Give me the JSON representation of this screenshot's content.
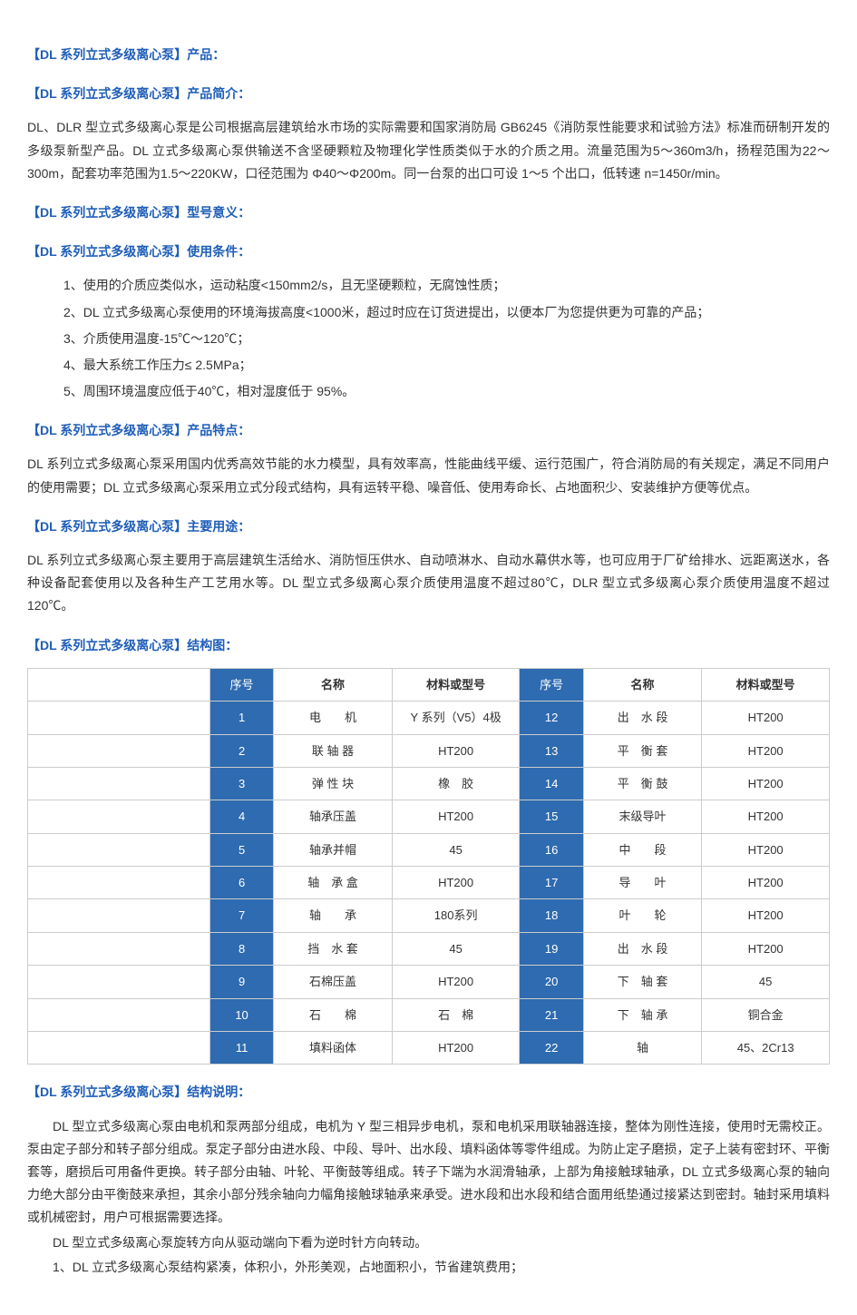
{
  "headers": {
    "product": "【DL 系列立式多级离心泵】产品：",
    "intro": "【DL 系列立式多级离心泵】产品简介：",
    "model": "【DL 系列立式多级离心泵】型号意义：",
    "conditions": "【DL 系列立式多级离心泵】使用条件：",
    "features": "【DL 系列立式多级离心泵】产品特点：",
    "usage": "【DL 系列立式多级离心泵】主要用途：",
    "structDiagram": "【DL 系列立式多级离心泵】结构图：",
    "structDesc": "【DL 系列立式多级离心泵】结构说明："
  },
  "intro_text": "DL、DLR 型立式多级离心泵是公司根据高层建筑给水市场的实际需要和国家消防局 GB6245《消防泵性能要求和试验方法》标准而研制开发的多级泵新型产品。DL 立式多级离心泵供输送不含坚硬颗粒及物理化学性质类似于水的介质之用。流量范围为5～360m3/h，扬程范围为22～300m，配套功率范围为1.5～220KW，口径范围为 Φ40～Φ200m。同一台泵的出口可设 1～5 个出口，低转速 n=1450r/min。",
  "conditions_list": [
    "1、使用的介质应类似水，运动粘度<150mm2/s，且无坚硬颗粒，无腐蚀性质；",
    "2、DL 立式多级离心泵使用的环境海拔高度<1000米，超过时应在订货进提出，以便本厂为您提供更为可靠的产品；",
    "3、介质使用温度-15℃～120℃；",
    "4、最大系统工作压力≤ 2.5MPa；",
    "5、周围环境温度应低于40℃，相对湿度低于 95%。"
  ],
  "features_text": "DL 系列立式多级离心泵采用国内优秀高效节能的水力模型，具有效率高，性能曲线平缓、运行范围广，符合消防局的有关规定，满足不同用户的使用需要；DL 立式多级离心泵采用立式分段式结构，具有运转平稳、噪音低、使用寿命长、占地面积少、安装维护方便等优点。",
  "usage_text": "DL 系列立式多级离心泵主要用于高层建筑生活给水、消防恒压供水、自动喷淋水、自动水幕供水等，也可应用于厂矿给排水、远距离送水，各种设备配套使用以及各种生产工艺用水等。DL 型立式多级离心泵介质使用温度不超过80℃，DLR 型立式多级离心泵介质使用温度不超过120℃。",
  "table": {
    "columns": {
      "idx1": "序号",
      "name1": "名称",
      "mat1": "材料或型号",
      "idx2": "序号",
      "name2": "名称",
      "mat2": "材料或型号"
    },
    "rows": [
      {
        "i1": "1",
        "n1": "电　　机",
        "m1": "Y 系列（V5）4极",
        "i2": "12",
        "n2": "出　水 段",
        "m2": "HT200"
      },
      {
        "i1": "2",
        "n1": "联 轴 器",
        "m1": "HT200",
        "i2": "13",
        "n2": "平　衡 套",
        "m2": "HT200"
      },
      {
        "i1": "3",
        "n1": "弹 性 块",
        "m1": "橡　胶",
        "i2": "14",
        "n2": "平　衡 鼓",
        "m2": "HT200"
      },
      {
        "i1": "4",
        "n1": "轴承压盖",
        "m1": "HT200",
        "i2": "15",
        "n2": "末级导叶",
        "m2": "HT200"
      },
      {
        "i1": "5",
        "n1": "轴承并帽",
        "m1": "45",
        "i2": "16",
        "n2": "中　　段",
        "m2": "HT200"
      },
      {
        "i1": "6",
        "n1": "轴　承 盒",
        "m1": "HT200",
        "i2": "17",
        "n2": "导　　叶",
        "m2": "HT200"
      },
      {
        "i1": "7",
        "n1": "轴　　承",
        "m1": "180系列",
        "i2": "18",
        "n2": "叶　　轮",
        "m2": "HT200"
      },
      {
        "i1": "8",
        "n1": "挡　水 套",
        "m1": "45",
        "i2": "19",
        "n2": "出　水 段",
        "m2": "HT200"
      },
      {
        "i1": "9",
        "n1": "石棉压盖",
        "m1": "HT200",
        "i2": "20",
        "n2": "下　轴 套",
        "m2": "45"
      },
      {
        "i1": "10",
        "n1": "石　　棉",
        "m1": "石　棉",
        "i2": "21",
        "n2": "下　轴 承",
        "m2": "铜合金"
      },
      {
        "i1": "11",
        "n1": "填料函体",
        "m1": "HT200",
        "i2": "22",
        "n2": "轴",
        "m2": "45、2Cr13"
      }
    ]
  },
  "struct_desc": {
    "p1": "DL 型立式多级离心泵由电机和泵两部分组成，电机为 Y 型三相异步电机，泵和电机采用联轴器连接，整体为刚性连接，使用时无需校正。泵由定子部分和转子部分组成。泵定子部分由进水段、中段、导叶、出水段、填料函体等零件组成。为防止定子磨损，定子上装有密封环、平衡套等，磨损后可用备件更换。转子部分由轴、叶轮、平衡鼓等组成。转子下端为水润滑轴承，上部为角接触球轴承，DL 立式多级离心泵的轴向力绝大部分由平衡鼓来承担，其余小部分残余轴向力幅角接触球轴承来承受。进水段和出水段和结合面用纸垫通过接紧达到密封。轴封采用填料或机械密封，用户可根据需要选择。",
    "p2": "DL 型立式多级离心泵旋转方向从驱动端向下看为逆时针方向转动。",
    "n1": "1、DL 立式多级离心泵结构紧凑，体积小，外形美观，占地面积小，节省建筑费用；"
  }
}
